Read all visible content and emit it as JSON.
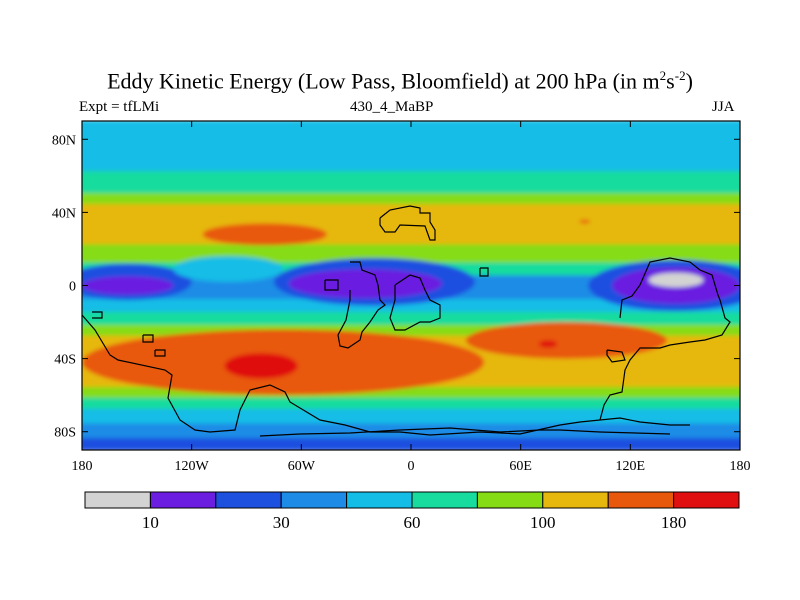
{
  "chart_data": {
    "type": "heatmap",
    "title_main": "Eddy Kinetic Energy (Low Pass, Bloomfield) at 200 hPa (in m",
    "title_sup1": "2",
    "title_mid": "s",
    "title_sup2": "-2",
    "title_end": ")",
    "left_subtitle": "Expt = tfLMi",
    "center_subtitle": "430_4_MaBP",
    "right_subtitle": "JJA",
    "x_ticks": [
      "180",
      "120W",
      "60W",
      "0",
      "60E",
      "120E",
      "180"
    ],
    "y_ticks": [
      "80N",
      "40N",
      "0",
      "40S",
      "80S"
    ],
    "xlim": [
      -180,
      180
    ],
    "ylim": [
      -90,
      90
    ],
    "colorbar": {
      "levels": [
        10,
        20,
        30,
        45,
        60,
        80,
        100,
        120,
        150,
        180
      ],
      "labels": [
        "10",
        "30",
        "60",
        "100",
        "180"
      ],
      "colors": [
        "#d3d3d3",
        "#6b1ee0",
        "#1e50e0",
        "#1e8ce6",
        "#14bde6",
        "#18dc9e",
        "#86dc14",
        "#e6b80e",
        "#e8580c",
        "#e01010"
      ]
    },
    "bands": [
      {
        "lat": [
          80,
          90
        ],
        "value": 60
      },
      {
        "lat": [
          62,
          80
        ],
        "value": 60
      },
      {
        "lat": [
          50,
          62
        ],
        "value": 80
      },
      {
        "lat": [
          44,
          50
        ],
        "value": 100
      },
      {
        "lat": [
          22,
          44
        ],
        "value": 120
      },
      {
        "lat": [
          12,
          22
        ],
        "value": 100
      },
      {
        "lat": [
          5,
          12
        ],
        "value": 80
      },
      {
        "lat": [
          -8,
          5
        ],
        "value": 45
      },
      {
        "lat": [
          -15,
          -8
        ],
        "value": 60
      },
      {
        "lat": [
          -22,
          -15
        ],
        "value": 80
      },
      {
        "lat": [
          -28,
          -22
        ],
        "value": 100
      },
      {
        "lat": [
          -56,
          -28
        ],
        "value": 120
      },
      {
        "lat": [
          -62,
          -56
        ],
        "value": 100
      },
      {
        "lat": [
          -68,
          -62
        ],
        "value": 80
      },
      {
        "lat": [
          -76,
          -68
        ],
        "value": 60
      },
      {
        "lat": [
          -84,
          -76
        ],
        "value": 45
      },
      {
        "lat": [
          -90,
          -84
        ],
        "value": 30
      }
    ],
    "blobs": [
      {
        "lon": -155,
        "lat": 2,
        "rlon": 35,
        "rlat": 10,
        "value": 30
      },
      {
        "lon": -155,
        "lat": 0,
        "rlon": 25,
        "rlat": 5,
        "value": 20
      },
      {
        "lon": -20,
        "lat": 2,
        "rlon": 55,
        "rlat": 13,
        "value": 30
      },
      {
        "lon": -25,
        "lat": 1,
        "rlon": 42,
        "rlat": 8,
        "value": 20
      },
      {
        "lon": 145,
        "lat": 0,
        "rlon": 48,
        "rlat": 14,
        "value": 30
      },
      {
        "lon": 145,
        "lat": 0,
        "rlon": 35,
        "rlat": 10,
        "value": 20
      },
      {
        "lon": 145,
        "lat": 3,
        "rlon": 15,
        "rlat": 4,
        "value": 10
      },
      {
        "lon": -100,
        "lat": 9,
        "rlon": 30,
        "rlat": 7,
        "value": 60
      },
      {
        "lon": -80,
        "lat": 28,
        "rlon": 34,
        "rlat": 6,
        "value": 150
      },
      {
        "lon": 95,
        "lat": 35,
        "rlon": 3,
        "rlat": 1,
        "value": 150
      },
      {
        "lon": -70,
        "lat": -42,
        "rlon": 110,
        "rlat": 18,
        "value": 150
      },
      {
        "lon": -82,
        "lat": -44,
        "rlon": 20,
        "rlat": 7,
        "value": 180
      },
      {
        "lon": 85,
        "lat": -30,
        "rlon": 55,
        "rlat": 10,
        "value": 150
      },
      {
        "lon": 75,
        "lat": -32,
        "rlon": 5,
        "rlat": 2,
        "value": 180
      }
    ]
  }
}
